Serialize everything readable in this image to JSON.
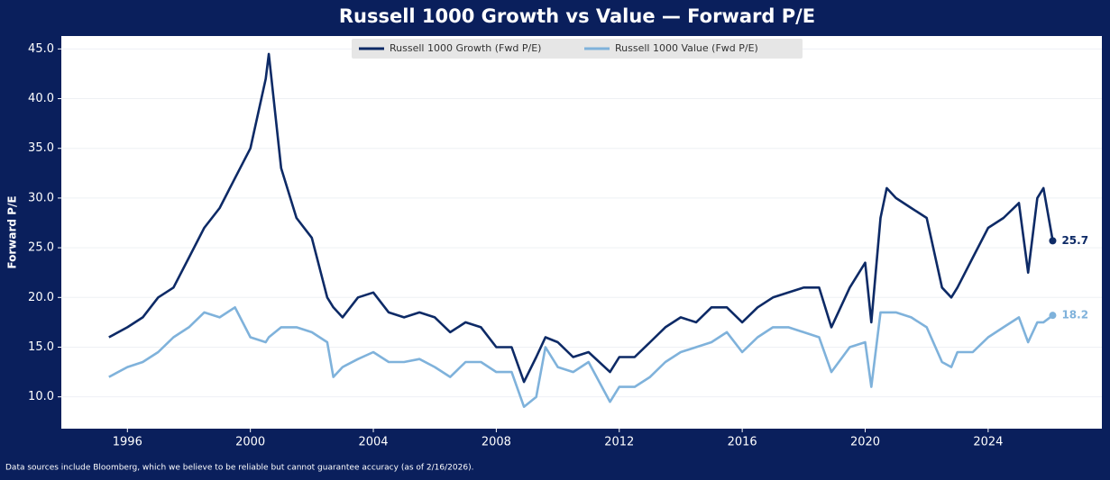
{
  "chart_data": {
    "type": "line",
    "title": "Russell 1000 Growth vs Value — Forward P/E",
    "y_label": "Forward P/E",
    "footnote": "Data sources include Bloomberg, which we believe to be reliable but cannot guarantee accuracy (as of 2/16/2026).",
    "x": [
      1995.4,
      1996,
      1996.5,
      1997,
      1997.5,
      1998,
      1998.5,
      1999,
      1999.5,
      2000,
      2000.5,
      2000.6,
      2001,
      2001.5,
      2002,
      2002.5,
      2002.7,
      2003,
      2003.5,
      2004,
      2004.5,
      2005,
      2005.5,
      2006,
      2006.5,
      2007,
      2007.5,
      2008,
      2008.5,
      2008.9,
      2009.3,
      2009.6,
      2010,
      2010.5,
      2011,
      2011.7,
      2012,
      2012.5,
      2013,
      2013.5,
      2014,
      2014.5,
      2015,
      2015.5,
      2016,
      2016.5,
      2017,
      2017.5,
      2018,
      2018.5,
      2018.9,
      2019.5,
      2020,
      2020.2,
      2020.5,
      2020.7,
      2021,
      2021.5,
      2022,
      2022.5,
      2022.8,
      2023,
      2023.5,
      2024,
      2024.5,
      2025,
      2025.3,
      2025.6,
      2025.8,
      2026.1
    ],
    "series": [
      {
        "name": "Russell 1000 Growth (Fwd P/E)",
        "color": "#0d2a66",
        "values": [
          16,
          17,
          18,
          20,
          21,
          24,
          27,
          29,
          32,
          35,
          42,
          44.5,
          33,
          28,
          26,
          20,
          19,
          18,
          20,
          20.5,
          18.5,
          18,
          18.5,
          18,
          16.5,
          17.5,
          17,
          15,
          15,
          11.5,
          14,
          16,
          15.5,
          14,
          14.5,
          12.5,
          14,
          14,
          15.5,
          17,
          18,
          17.5,
          19,
          19,
          17.5,
          19,
          20,
          20.5,
          21,
          21,
          17,
          21,
          23.5,
          17.5,
          28,
          31,
          30,
          29,
          28,
          21,
          20,
          21,
          24,
          27,
          28,
          29.5,
          22.5,
          30,
          31,
          25.7
        ]
      },
      {
        "name": "Russell 1000 Value (Fwd P/E)",
        "color": "#7fb2db",
        "values": [
          12,
          13,
          13.5,
          14.5,
          16,
          17,
          18.5,
          18,
          19,
          16,
          15.5,
          16,
          17,
          17,
          16.5,
          15.5,
          12,
          13,
          13.8,
          14.5,
          13.5,
          13.5,
          13.8,
          13,
          12,
          13.5,
          13.5,
          12.5,
          12.5,
          9,
          10,
          15,
          13,
          12.5,
          13.5,
          9.5,
          11,
          11,
          12,
          13.5,
          14.5,
          15,
          15.5,
          16.5,
          14.5,
          16,
          17,
          17,
          16.5,
          16,
          12.5,
          15,
          15.5,
          11,
          18.5,
          18.5,
          18.5,
          18,
          17,
          13.5,
          13,
          14.5,
          14.5,
          16,
          17,
          18,
          15.5,
          17.5,
          17.5,
          18.2
        ]
      }
    ],
    "xlim": [
      1993.85,
      2027.7
    ],
    "xticks": [
      1996,
      2000,
      2004,
      2008,
      2012,
      2016,
      2020,
      2024
    ],
    "ylim": [
      6.8,
      46.3
    ],
    "yticks": [
      {
        "value": 10,
        "label": "10.0"
      },
      {
        "value": 15,
        "label": "15.0"
      },
      {
        "value": 20,
        "label": "20.0"
      },
      {
        "value": 25,
        "label": "25.0"
      },
      {
        "value": 30,
        "label": "30.0"
      },
      {
        "value": 35,
        "label": "35.0"
      },
      {
        "value": 40,
        "label": "40.0"
      },
      {
        "value": 45,
        "label": "45.0"
      }
    ],
    "grid": true,
    "legend": "top"
  }
}
